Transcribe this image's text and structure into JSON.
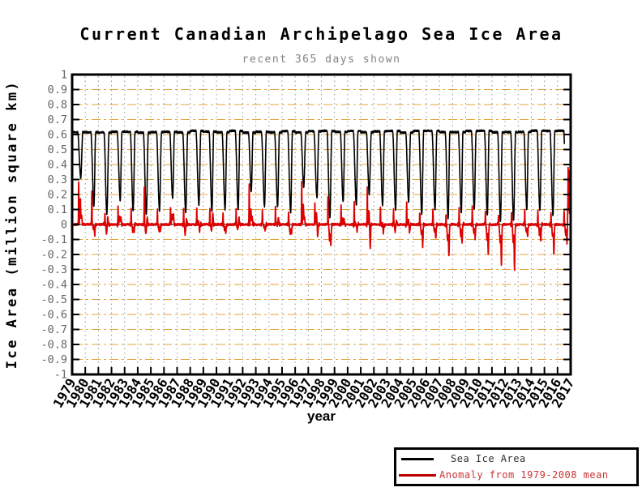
{
  "chart_data": {
    "type": "line",
    "title": "Current Canadian Archipelago Sea Ice Area",
    "subtitle": "recent 365 days shown",
    "xlabel": "year",
    "ylabel": "Ice Area (million square km)",
    "x_range": [
      1979,
      2017
    ],
    "y_range": [
      -1,
      1
    ],
    "y_tick_step": 0.1,
    "x_ticks": [
      1979,
      1980,
      1981,
      1982,
      1983,
      1984,
      1985,
      1986,
      1987,
      1988,
      1989,
      1990,
      1991,
      1992,
      1993,
      1994,
      1995,
      1996,
      1997,
      1998,
      1999,
      2000,
      2001,
      2002,
      2003,
      2004,
      2005,
      2006,
      2007,
      2008,
      2009,
      2010,
      2011,
      2012,
      2013,
      2014,
      2015,
      2016,
      2017
    ],
    "y_tick_labels": [
      "1",
      "0.9",
      "0.8",
      "0.7",
      "0.6",
      "0.5",
      "0.4",
      "0.3",
      "0.2",
      "0.1",
      "0",
      "-0.1",
      "-0.2",
      "-0.3",
      "-0.4",
      "-0.5",
      "-0.6",
      "-0.7",
      "-0.8",
      "-0.9",
      "-1"
    ],
    "grid": {
      "horizontal_color": "#e4a33b",
      "vertical_color": "#939393",
      "zero_line_color": "#000000"
    },
    "frame_color": "#000000",
    "axis_text_colors": {
      "y_ticks": "#666666",
      "x_ticks": "#000000"
    },
    "series": [
      {
        "name": "Sea Ice Area",
        "color": "#000000",
        "winter_max": 0.62,
        "data_end": 2016.52,
        "annual_summer_min": [
          [
            1979,
            0.31
          ],
          [
            1980,
            0.12
          ],
          [
            1981,
            0.07
          ],
          [
            1982,
            0.16
          ],
          [
            1983,
            0.09
          ],
          [
            1984,
            0.07
          ],
          [
            1985,
            0.09
          ],
          [
            1986,
            0.17
          ],
          [
            1987,
            0.08
          ],
          [
            1988,
            0.13
          ],
          [
            1989,
            0.09
          ],
          [
            1990,
            0.1
          ],
          [
            1991,
            0.1
          ],
          [
            1992,
            0.22
          ],
          [
            1993,
            0.12
          ],
          [
            1994,
            0.12
          ],
          [
            1995,
            0.08
          ],
          [
            1996,
            0.25
          ],
          [
            1997,
            0.18
          ],
          [
            1998,
            0.04
          ],
          [
            1999,
            0.15
          ],
          [
            2000,
            0.13
          ],
          [
            2001,
            0.2
          ],
          [
            2002,
            0.13
          ],
          [
            2003,
            0.1
          ],
          [
            2004,
            0.15
          ],
          [
            2005,
            0.07
          ],
          [
            2006,
            0.1
          ],
          [
            2007,
            0.04
          ],
          [
            2008,
            0.08
          ],
          [
            2009,
            0.1
          ],
          [
            2010,
            0.06
          ],
          [
            2011,
            0.02
          ],
          [
            2012,
            0.03
          ],
          [
            2013,
            0.1
          ],
          [
            2014,
            0.09
          ],
          [
            2015,
            0.06
          ],
          [
            2016,
            0.1
          ]
        ]
      },
      {
        "name": "Anomaly from 1979-2008 mean",
        "color": "#dd0000",
        "annual_features": [
          [
            1979,
            0.28,
            0.17,
            0.06
          ],
          [
            1980,
            0.22,
            -0.02,
            -0.07
          ],
          [
            1981,
            0.08,
            -0.06,
            0.05
          ],
          [
            1982,
            0.12,
            0.05,
            0.04
          ],
          [
            1983,
            0.1,
            -0.04,
            -0.05
          ],
          [
            1984,
            0.24,
            -0.06,
            0.05
          ],
          [
            1985,
            0.1,
            -0.04,
            -0.04
          ],
          [
            1986,
            0.12,
            0.06,
            0.07
          ],
          [
            1987,
            0.1,
            -0.06,
            0.04
          ],
          [
            1988,
            0.12,
            0.02,
            -0.04
          ],
          [
            1989,
            0.1,
            -0.04,
            0.07
          ],
          [
            1990,
            0.08,
            -0.03,
            -0.05
          ],
          [
            1991,
            0.1,
            -0.03,
            0.04
          ],
          [
            1992,
            0.26,
            0.1,
            0.05
          ],
          [
            1993,
            0.1,
            -0.02,
            -0.04
          ],
          [
            1994,
            0.12,
            0,
            0.04
          ],
          [
            1995,
            0.08,
            -0.06,
            -0.06
          ],
          [
            1996,
            0.28,
            0.13,
            0.05
          ],
          [
            1997,
            0.14,
            0.07,
            -0.08
          ],
          [
            1998,
            0.18,
            -0.1,
            -0.14
          ],
          [
            1999,
            0.12,
            0.03,
            0.04
          ],
          [
            2000,
            0.14,
            0.01,
            -0.04
          ],
          [
            2001,
            0.26,
            0.09,
            -0.16
          ],
          [
            2002,
            0.12,
            0,
            -0.05
          ],
          [
            2003,
            0.1,
            -0.04,
            0.03
          ],
          [
            2004,
            0.16,
            0.03,
            -0.05
          ],
          [
            2005,
            0.08,
            -0.07,
            -0.14
          ],
          [
            2006,
            0.1,
            -0.05,
            -0.09
          ],
          [
            2007,
            0.06,
            -0.11,
            -0.21
          ],
          [
            2008,
            0.1,
            -0.07,
            -0.11
          ],
          [
            2009,
            0.12,
            -0.05,
            -0.09
          ],
          [
            2010,
            0.08,
            -0.09,
            -0.19
          ],
          [
            2011,
            0.06,
            -0.13,
            -0.26
          ],
          [
            2012,
            0.08,
            -0.12,
            -0.3
          ],
          [
            2013,
            0.1,
            -0.05,
            -0.08
          ],
          [
            2014,
            0.1,
            -0.06,
            -0.11
          ],
          [
            2015,
            0.08,
            -0.08,
            -0.2
          ],
          [
            2016,
            0.09,
            -0.07,
            -0.12
          ]
        ],
        "end_segment": [
          [
            2016.76,
            0.02
          ],
          [
            2016.79,
            0.16
          ],
          [
            2016.81,
            0.38
          ],
          [
            2016.83,
            0.22
          ],
          [
            2016.85,
            0.36
          ],
          [
            2016.88,
            0.12
          ],
          [
            2016.92,
            0.07
          ]
        ]
      }
    ],
    "legend": {
      "position": "bottom-right",
      "entries": [
        {
          "label": "Sea Ice Area",
          "line_color": "#000000",
          "text_color": "#2e2e2e"
        },
        {
          "label": "Anomaly from 1979-2008 mean",
          "line_color": "#bb0000",
          "text_color": "#cc3333"
        }
      ]
    }
  }
}
